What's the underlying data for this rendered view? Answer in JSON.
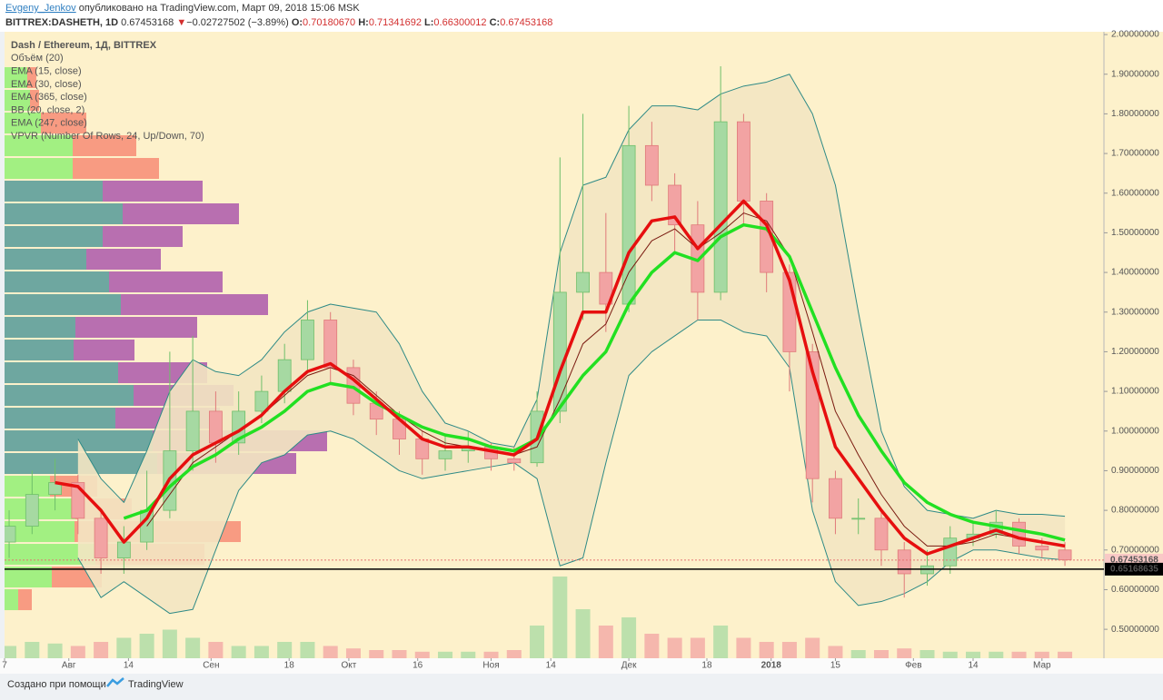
{
  "header": {
    "author": "Evgeny_Jenkov",
    "published": "опубликовано на TradingView.com, Март 09, 2018 15:06 MSK",
    "symbol": "BITTREX:DASHETH, 1D",
    "last": "0.67453168",
    "arrow": "▼",
    "change": "−0.02727502 (−3.89%)",
    "ohlc": [
      {
        "label": "O:",
        "value": "0.70180670"
      },
      {
        "label": "H:",
        "value": "0.71341692"
      },
      {
        "label": "L:",
        "value": "0.66300012"
      },
      {
        "label": "C:",
        "value": "0.67453168"
      }
    ]
  },
  "chart_data": {
    "type": "candlestick",
    "legend": [
      "Dash / Ethereum, 1Д, BITTREX",
      "Объём (20)",
      "EMA (15, close)",
      "EMA (30, close)",
      "EMA (365, close)",
      "BB (20, close, 2)",
      "EMA (247, close)",
      "VPVR (Number Of Rows, 24, Up/Down, 70)"
    ],
    "xlim": [
      -14,
      225.5
    ],
    "ylim": [
      0.427,
      2.007
    ],
    "xticks": [
      {
        "value": -14,
        "label": "7"
      },
      {
        "value": 0,
        "label": "Авг"
      },
      {
        "value": 13,
        "label": "14"
      },
      {
        "value": 31,
        "label": "Сен"
      },
      {
        "value": 48,
        "label": "18"
      },
      {
        "value": 61,
        "label": "Окт"
      },
      {
        "value": 76,
        "label": "16"
      },
      {
        "value": 92,
        "label": "Ноя"
      },
      {
        "value": 105,
        "label": "14"
      },
      {
        "value": 122,
        "label": "Дек"
      },
      {
        "value": 139,
        "label": "18"
      },
      {
        "value": 153,
        "label": "2018"
      },
      {
        "value": 167,
        "label": "15"
      },
      {
        "value": 184,
        "label": "Фев"
      },
      {
        "value": 197,
        "label": "14"
      },
      {
        "value": 212,
        "label": "Мар"
      }
    ],
    "bold_xtick": 11,
    "yticks": [
      {
        "value": 2.0,
        "label": "2.00000000"
      },
      {
        "value": 1.9,
        "label": "1.90000000"
      },
      {
        "value": 1.8,
        "label": "1.80000000"
      },
      {
        "value": 1.7,
        "label": "1.70000000"
      },
      {
        "value": 1.6,
        "label": "1.60000000"
      },
      {
        "value": 1.5,
        "label": "1.50000000"
      },
      {
        "value": 1.4,
        "label": "1.40000000"
      },
      {
        "value": 1.3,
        "label": "1.30000000"
      },
      {
        "value": 1.2,
        "label": "1.20000000"
      },
      {
        "value": 1.1,
        "label": "1.10000000"
      },
      {
        "value": 1.0,
        "label": "1.00000000"
      },
      {
        "value": 0.9,
        "label": "0.90000000"
      },
      {
        "value": 0.8,
        "label": "0.80000000"
      },
      {
        "value": 0.7,
        "label": "0.70000000"
      },
      {
        "value": 0.6,
        "label": "0.60000000"
      },
      {
        "value": 0.5,
        "label": "0.50000000"
      }
    ],
    "x": [
      -13,
      -8,
      -3,
      2,
      7,
      12,
      17,
      22,
      27,
      32,
      37,
      42,
      47,
      52,
      57,
      62,
      67,
      72,
      77,
      82,
      87,
      92,
      97,
      102,
      107,
      112,
      117,
      122,
      127,
      132,
      137,
      142,
      147,
      152,
      157,
      162,
      167,
      172,
      177,
      182,
      187,
      192,
      197,
      202,
      207,
      212,
      217
    ],
    "open": [
      0.72,
      0.76,
      0.84,
      0.87,
      0.78,
      0.68,
      0.72,
      0.8,
      0.95,
      1.05,
      0.97,
      1.05,
      1.1,
      1.18,
      1.28,
      1.16,
      1.07,
      1.03,
      0.98,
      0.93,
      0.95,
      0.96,
      0.93,
      0.92,
      1.05,
      1.35,
      1.4,
      1.32,
      1.72,
      1.62,
      1.52,
      1.35,
      1.78,
      1.58,
      1.4,
      1.2,
      0.88,
      0.78,
      0.78,
      0.7,
      0.64,
      0.66,
      0.73,
      0.74,
      0.77,
      0.71,
      0.7
    ],
    "high": [
      0.8,
      0.9,
      0.93,
      0.89,
      0.8,
      0.76,
      0.9,
      1.2,
      1.24,
      1.1,
      1.1,
      1.14,
      1.22,
      1.33,
      1.3,
      1.18,
      1.1,
      1.05,
      1.0,
      0.99,
      1.0,
      0.97,
      0.96,
      1.1,
      1.69,
      1.8,
      1.55,
      1.82,
      1.78,
      1.65,
      1.58,
      1.92,
      1.8,
      1.6,
      1.42,
      1.22,
      0.9,
      0.83,
      0.8,
      0.72,
      0.7,
      0.76,
      0.77,
      0.8,
      0.78,
      0.73,
      0.72
    ],
    "low": [
      0.68,
      0.74,
      0.8,
      0.74,
      0.64,
      0.64,
      0.7,
      0.78,
      0.9,
      0.92,
      0.94,
      1.02,
      1.07,
      1.15,
      1.12,
      1.04,
      0.99,
      0.94,
      0.89,
      0.9,
      0.92,
      0.9,
      0.9,
      0.91,
      1.02,
      1.28,
      1.25,
      1.3,
      1.58,
      1.45,
      1.28,
      1.33,
      1.52,
      1.35,
      1.1,
      0.82,
      0.74,
      0.74,
      0.66,
      0.58,
      0.61,
      0.64,
      0.71,
      0.73,
      0.69,
      0.68,
      0.66
    ],
    "close": [
      0.76,
      0.84,
      0.87,
      0.78,
      0.68,
      0.72,
      0.8,
      0.95,
      1.05,
      0.97,
      1.05,
      1.1,
      1.18,
      1.28,
      1.16,
      1.07,
      1.03,
      0.98,
      0.93,
      0.95,
      0.96,
      0.93,
      0.92,
      1.05,
      1.35,
      1.4,
      1.32,
      1.72,
      1.62,
      1.52,
      1.35,
      1.78,
      1.58,
      1.4,
      1.2,
      0.88,
      0.78,
      0.78,
      0.7,
      0.64,
      0.66,
      0.73,
      0.74,
      0.77,
      0.71,
      0.7,
      0.675
    ],
    "up_color": "#a6d9a2",
    "down_color": "#f2a3a3",
    "up_wick": "#6fbf6a",
    "down_wick": "#e07a7a",
    "volume": [
      15,
      20,
      18,
      15,
      20,
      25,
      30,
      35,
      25,
      20,
      15,
      15,
      20,
      20,
      15,
      12,
      10,
      10,
      8,
      8,
      8,
      8,
      10,
      40,
      100,
      60,
      40,
      50,
      30,
      25,
      25,
      40,
      25,
      20,
      20,
      25,
      15,
      10,
      10,
      12,
      10,
      8,
      8,
      8,
      8,
      8,
      8
    ],
    "lines": [
      {
        "color": "#7a1a10",
        "width": 1,
        "values": [
          null,
          null,
          null,
          null,
          null,
          null,
          0.76,
          0.84,
          0.92,
          0.96,
          1.0,
          1.04,
          1.09,
          1.14,
          1.16,
          1.14,
          1.09,
          1.04,
          1.0,
          0.97,
          0.96,
          0.95,
          0.94,
          0.96,
          1.08,
          1.22,
          1.27,
          1.4,
          1.48,
          1.51,
          1.46,
          1.5,
          1.55,
          1.53,
          1.44,
          1.25,
          1.05,
          0.94,
          0.84,
          0.76,
          0.71,
          0.71,
          0.72,
          0.74,
          0.73,
          0.72,
          0.71
        ]
      },
      {
        "color": "#22e022",
        "width": 3.5,
        "values": [
          null,
          null,
          null,
          null,
          null,
          0.78,
          0.8,
          0.86,
          0.91,
          0.94,
          0.98,
          1.01,
          1.05,
          1.1,
          1.12,
          1.11,
          1.07,
          1.04,
          1.01,
          0.99,
          0.98,
          0.96,
          0.95,
          0.98,
          1.06,
          1.14,
          1.2,
          1.32,
          1.4,
          1.45,
          1.43,
          1.49,
          1.52,
          1.51,
          1.44,
          1.3,
          1.16,
          1.04,
          0.95,
          0.87,
          0.82,
          0.79,
          0.77,
          0.76,
          0.75,
          0.74,
          0.725
        ]
      },
      {
        "color": "#e60f0f",
        "width": 3.5,
        "values": [
          null,
          null,
          0.87,
          0.86,
          0.8,
          0.72,
          0.78,
          0.88,
          0.94,
          0.97,
          1.0,
          1.04,
          1.1,
          1.15,
          1.17,
          1.13,
          1.08,
          1.03,
          0.98,
          0.96,
          0.96,
          0.95,
          0.94,
          0.98,
          1.15,
          1.3,
          1.3,
          1.45,
          1.53,
          1.54,
          1.46,
          1.52,
          1.58,
          1.52,
          1.38,
          1.15,
          0.96,
          0.88,
          0.8,
          0.73,
          0.69,
          0.71,
          0.73,
          0.75,
          0.73,
          0.72,
          0.71
        ]
      }
    ],
    "bands": {
      "color": "#2e8a86",
      "fill": "#f3e6c2",
      "upper": [
        null,
        null,
        null,
        0.98,
        0.88,
        0.82,
        0.95,
        1.1,
        1.18,
        1.15,
        1.14,
        1.18,
        1.25,
        1.3,
        1.32,
        1.31,
        1.3,
        1.22,
        1.1,
        1.02,
        1.0,
        0.97,
        0.96,
        1.08,
        1.45,
        1.62,
        1.64,
        1.76,
        1.82,
        1.82,
        1.81,
        1.85,
        1.87,
        1.88,
        1.9,
        1.8,
        1.62,
        1.3,
        1.0,
        0.86,
        0.8,
        0.79,
        0.78,
        0.8,
        0.79,
        0.79,
        0.785
      ],
      "lower": [
        null,
        null,
        null,
        0.68,
        0.58,
        0.62,
        0.58,
        0.54,
        0.55,
        0.7,
        0.85,
        0.92,
        0.94,
        0.99,
        1.0,
        0.98,
        0.94,
        0.9,
        0.88,
        0.89,
        0.9,
        0.91,
        0.92,
        0.88,
        0.66,
        0.68,
        0.92,
        1.14,
        1.2,
        1.24,
        1.28,
        1.28,
        1.25,
        1.24,
        1.16,
        0.8,
        0.62,
        0.56,
        0.57,
        0.59,
        0.62,
        0.67,
        0.7,
        0.7,
        0.69,
        0.68,
        0.675
      ]
    },
    "vpvr": {
      "price_range": [
        0.546,
        1.92
      ],
      "value_area": [
        5,
        17
      ],
      "up": [
        25,
        28,
        40,
        75,
        75,
        108,
        130,
        108,
        90,
        115,
        128,
        78,
        76,
        125,
        142,
        122,
        163,
        168,
        50,
        78,
        77,
        100,
        52,
        15
      ],
      "down": [
        10,
        10,
        50,
        70,
        95,
        110,
        128,
        88,
        82,
        125,
        162,
        134,
        67,
        98,
        110,
        115,
        192,
        153,
        52,
        62,
        183,
        120,
        55,
        15
      ],
      "colors": {
        "up": "#98f07a",
        "down": "#f7917a",
        "va_up": "#5e9f9b",
        "va_down": "#b060ad"
      }
    },
    "last_price": 0.67453168,
    "level": 0.65168635
  },
  "footer": {
    "created_with": "Создано при помощи",
    "brand": "TradingView"
  }
}
